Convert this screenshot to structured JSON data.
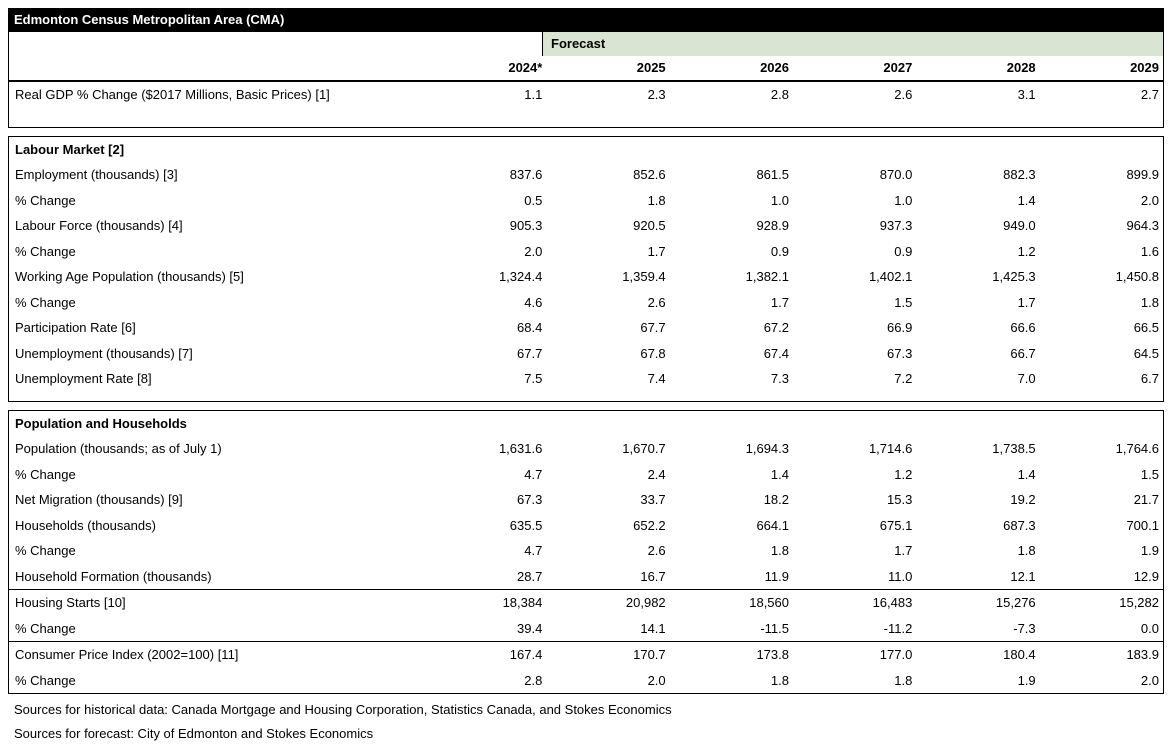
{
  "title": "Edmonton Census Metropolitan Area (CMA)",
  "forecast_label": "Forecast",
  "columns": [
    "2024*",
    "2025",
    "2026",
    "2027",
    "2028",
    "2029"
  ],
  "colors": {
    "title_bg": "#000000",
    "title_text": "#ffffff",
    "forecast_band_bg": "#d9e5d2",
    "border": "#000000"
  },
  "sections": [
    {
      "name": "real-gdp",
      "header": null,
      "rows": [
        {
          "label": "Real GDP % Change ($2017 Millions, Basic Prices) [1]",
          "values": [
            "1.1",
            "2.3",
            "2.8",
            "2.6",
            "3.1",
            "2.7"
          ]
        }
      ]
    },
    {
      "name": "labour-market",
      "header": "Labour Market [2]",
      "rows": [
        {
          "label": "Employment (thousands) [3]",
          "values": [
            "837.6",
            "852.6",
            "861.5",
            "870.0",
            "882.3",
            "899.9"
          ]
        },
        {
          "label": "% Change",
          "values": [
            "0.5",
            "1.8",
            "1.0",
            "1.0",
            "1.4",
            "2.0"
          ]
        },
        {
          "label": "Labour Force (thousands) [4]",
          "values": [
            "905.3",
            "920.5",
            "928.9",
            "937.3",
            "949.0",
            "964.3"
          ]
        },
        {
          "label": "% Change",
          "values": [
            "2.0",
            "1.7",
            "0.9",
            "0.9",
            "1.2",
            "1.6"
          ]
        },
        {
          "label": "Working Age Population (thousands) [5]",
          "values": [
            "1,324.4",
            "1,359.4",
            "1,382.1",
            "1,402.1",
            "1,425.3",
            "1,450.8"
          ]
        },
        {
          "label": "% Change",
          "values": [
            "4.6",
            "2.6",
            "1.7",
            "1.5",
            "1.7",
            "1.8"
          ]
        },
        {
          "label": "Participation Rate [6]",
          "values": [
            "68.4",
            "67.7",
            "67.2",
            "66.9",
            "66.6",
            "66.5"
          ]
        },
        {
          "label": "Unemployment (thousands) [7]",
          "values": [
            "67.7",
            "67.8",
            "67.4",
            "67.3",
            "66.7",
            "64.5"
          ]
        },
        {
          "label": "Unemployment Rate [8]",
          "values": [
            "7.5",
            "7.4",
            "7.3",
            "7.2",
            "7.0",
            "6.7"
          ]
        }
      ]
    },
    {
      "name": "population-households",
      "header": "Population and Households",
      "rows": [
        {
          "label": "Population (thousands; as of July 1)",
          "values": [
            "1,631.6",
            "1,670.7",
            "1,694.3",
            "1,714.6",
            "1,738.5",
            "1,764.6"
          ]
        },
        {
          "label": "% Change",
          "values": [
            "4.7",
            "2.4",
            "1.4",
            "1.2",
            "1.4",
            "1.5"
          ]
        },
        {
          "label": "Net Migration (thousands) [9]",
          "values": [
            "67.3",
            "33.7",
            "18.2",
            "15.3",
            "19.2",
            "21.7"
          ]
        },
        {
          "label": "Households (thousands)",
          "values": [
            "635.5",
            "652.2",
            "664.1",
            "675.1",
            "687.3",
            "700.1"
          ]
        },
        {
          "label": "% Change",
          "values": [
            "4.7",
            "2.6",
            "1.8",
            "1.7",
            "1.8",
            "1.9"
          ]
        },
        {
          "label": "Household Formation (thousands)",
          "values": [
            "28.7",
            "16.7",
            "11.9",
            "11.0",
            "12.1",
            "12.9"
          ]
        }
      ]
    },
    {
      "name": "housing-starts",
      "header": null,
      "rows": [
        {
          "label": "Housing Starts [10]",
          "values": [
            "18,384",
            "20,982",
            "18,560",
            "16,483",
            "15,276",
            "15,282"
          ]
        },
        {
          "label": "% Change",
          "values": [
            "39.4",
            "14.1",
            "-11.5",
            "-11.2",
            "-7.3",
            "0.0"
          ]
        }
      ]
    },
    {
      "name": "consumer-price-index",
      "header": null,
      "rows": [
        {
          "label": "Consumer Price Index (2002=100) [11]",
          "values": [
            "167.4",
            "170.7",
            "173.8",
            "177.0",
            "180.4",
            "183.9"
          ]
        },
        {
          "label": "% Change",
          "values": [
            "2.8",
            "2.0",
            "1.8",
            "1.8",
            "1.9",
            "2.0"
          ]
        }
      ]
    }
  ],
  "footnotes": [
    "Sources for historical data: Canada Mortgage and Housing Corporation, Statistics Canada, and Stokes Economics",
    "Sources for forecast: City of Edmonton and Stokes Economics"
  ]
}
